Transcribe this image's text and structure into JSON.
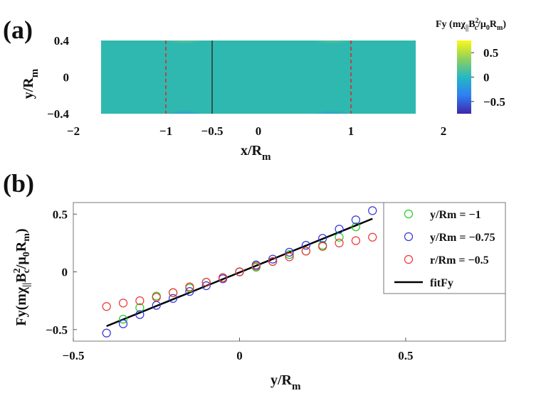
{
  "chart_data": [
    {
      "id": "a",
      "panel_label": "(a)",
      "type": "heatmap",
      "quantity": "Fy",
      "colorbar_title": "Fy (mχ||Bc²/μ0Rm)",
      "colorbar_ticks": [
        0.5,
        0,
        -0.5
      ],
      "colorbar_tick_labels": [
        "0.5",
        "0",
        "−0.5"
      ],
      "clim": [
        -0.75,
        0.75
      ],
      "xlim": [
        -2,
        2
      ],
      "ylim": [
        -0.4,
        0.4
      ],
      "xticks": [
        -2,
        -1,
        -0.5,
        0,
        1,
        2
      ],
      "xtick_labels": [
        "−2",
        "−1",
        "−0.5",
        "0",
        "1",
        "2"
      ],
      "yticks": [
        0.4,
        0,
        -0.4
      ],
      "ytick_labels": [
        "0.4",
        "0",
        "−0.4"
      ],
      "xlabel": "x/Rm",
      "ylabel": "y/Rm",
      "dashed_lines_x": [
        -1,
        1
      ],
      "solid_line_x": -0.5,
      "data_extent_x": [
        -1.7,
        1.7
      ],
      "hotspots_x": [
        -0.8,
        0.8
      ]
    },
    {
      "id": "b",
      "panel_label": "(b)",
      "type": "scatter",
      "xlabel": "y/Rm",
      "ylabel": "Fy(mχ||Bc²/μ0Rm)",
      "xlim": [
        -0.5,
        0.8
      ],
      "ylim": [
        -0.6,
        0.6
      ],
      "xticks": [
        -0.5,
        0,
        0.5
      ],
      "xtick_labels": [
        "−0.5",
        "0",
        "0.5"
      ],
      "yticks": [
        0.5,
        0,
        -0.5
      ],
      "ytick_labels": [
        "0.5",
        "0",
        "−0.5"
      ],
      "x": [
        -0.4,
        -0.35,
        -0.3,
        -0.25,
        -0.2,
        -0.15,
        -0.1,
        -0.05,
        0,
        0.05,
        0.1,
        0.15,
        0.2,
        0.25,
        0.3,
        0.35,
        0.4
      ],
      "series": [
        {
          "name": "y/Rm = −1",
          "color": "#22cc22",
          "values": [
            null,
            -0.41,
            -0.31,
            -0.21,
            -0.18,
            -0.14,
            -0.09,
            -0.05,
            0.0,
            0.04,
            0.09,
            0.15,
            0.18,
            0.23,
            0.3,
            0.39,
            null
          ]
        },
        {
          "name": "y/Rm = −0.75",
          "color": "#3333dd",
          "values": [
            -0.53,
            -0.45,
            -0.37,
            -0.29,
            -0.23,
            -0.17,
            -0.12,
            -0.06,
            0.0,
            0.06,
            0.11,
            0.17,
            0.23,
            0.29,
            0.37,
            0.45,
            0.53
          ]
        },
        {
          "name": "r/Rm = −0.5",
          "color": "#ee3333",
          "values": [
            -0.3,
            -0.27,
            -0.25,
            -0.22,
            -0.18,
            -0.13,
            -0.09,
            -0.05,
            0.0,
            0.05,
            0.09,
            0.13,
            0.18,
            0.22,
            0.25,
            0.27,
            0.3
          ]
        }
      ],
      "fit_line": {
        "name": "fitFy",
        "color": "#000000",
        "x": [
          -0.4,
          0.4
        ],
        "y": [
          -0.47,
          0.46
        ]
      },
      "legend": [
        "y/Rm = −1",
        "y/Rm = −0.75",
        "r/Rm = −0.5",
        "fitFy"
      ],
      "legend_position": "top-right"
    }
  ]
}
